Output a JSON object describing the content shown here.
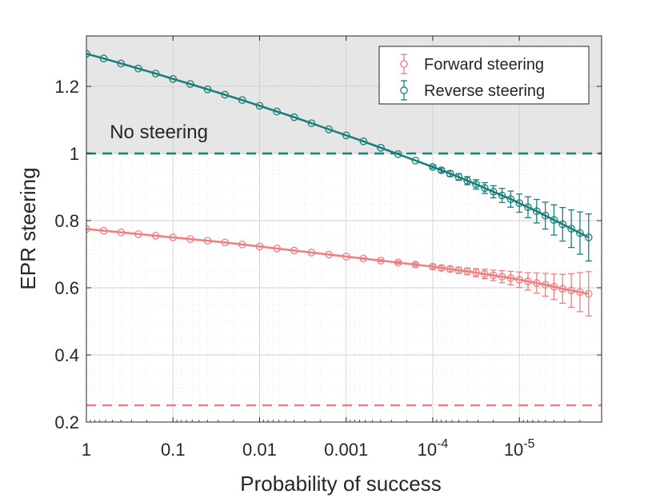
{
  "chart_data": {
    "type": "line",
    "xlabel": "Probability of success",
    "ylabel": "EPR steering",
    "x_scale": "log-reversed",
    "xlim_log10": [
      0,
      -5.95
    ],
    "ylim": [
      0.2,
      1.35
    ],
    "grid": true,
    "legend_position": "top-right",
    "x_ticks": [
      {
        "log10": 0,
        "label": "1"
      },
      {
        "log10": -1,
        "label": "0.1"
      },
      {
        "log10": -2,
        "label": "0.01"
      },
      {
        "log10": -3,
        "label": "0.001"
      },
      {
        "log10": -4,
        "base": "10",
        "exp": "-4"
      },
      {
        "log10": -5,
        "base": "10",
        "exp": "-5"
      }
    ],
    "y_ticks": [
      {
        "value": 0.2,
        "label": "0.2"
      },
      {
        "value": 0.4,
        "label": "0.4"
      },
      {
        "value": 0.6,
        "label": "0.6"
      },
      {
        "value": 0.8,
        "label": "0.8"
      },
      {
        "value": 1.0,
        "label": "1"
      },
      {
        "value": 1.2,
        "label": "1.2"
      }
    ],
    "shaded_region": {
      "from": 1.0,
      "to": 1.35,
      "label": "No steering",
      "color": "#e6e6e6"
    },
    "thresholds": [
      {
        "series": "Reverse steering",
        "value": 1.0
      },
      {
        "series": "Forward steering",
        "value": 0.25
      }
    ],
    "series": [
      {
        "name": "Forward steering",
        "color": "#f08080",
        "log10_x": [
          0,
          -0.2,
          -0.4,
          -0.6,
          -0.8,
          -1.0,
          -1.2,
          -1.4,
          -1.6,
          -1.8,
          -2.0,
          -2.2,
          -2.4,
          -2.6,
          -2.8,
          -3.0,
          -3.2,
          -3.4,
          -3.6,
          -3.8,
          -4.0,
          -4.1,
          -4.2,
          -4.3,
          -4.4,
          -4.5,
          -4.6,
          -4.7,
          -4.8,
          -4.9,
          -5.0,
          -5.1,
          -5.2,
          -5.3,
          -5.4,
          -5.5,
          -5.6,
          -5.7,
          -5.8
        ],
        "values": [
          0.775,
          0.77,
          0.765,
          0.76,
          0.755,
          0.75,
          0.745,
          0.74,
          0.735,
          0.729,
          0.723,
          0.717,
          0.711,
          0.705,
          0.699,
          0.693,
          0.687,
          0.681,
          0.675,
          0.669,
          0.663,
          0.659,
          0.656,
          0.652,
          0.649,
          0.645,
          0.641,
          0.637,
          0.633,
          0.629,
          0.624,
          0.619,
          0.614,
          0.609,
          0.603,
          0.597,
          0.592,
          0.587,
          0.582
        ],
        "errors": [
          0,
          0,
          0,
          0,
          0,
          0,
          0,
          0,
          0,
          0,
          0,
          0,
          0,
          0,
          0,
          0,
          0.002,
          0.003,
          0.004,
          0.005,
          0.006,
          0.007,
          0.008,
          0.009,
          0.01,
          0.012,
          0.014,
          0.016,
          0.018,
          0.02,
          0.023,
          0.026,
          0.03,
          0.034,
          0.038,
          0.043,
          0.05,
          0.058,
          0.066
        ]
      },
      {
        "name": "Reverse steering",
        "color": "#1a7f7a",
        "log10_x": [
          0,
          -0.2,
          -0.4,
          -0.6,
          -0.8,
          -1.0,
          -1.2,
          -1.4,
          -1.6,
          -1.8,
          -2.0,
          -2.2,
          -2.4,
          -2.6,
          -2.8,
          -3.0,
          -3.2,
          -3.4,
          -3.6,
          -3.8,
          -4.0,
          -4.1,
          -4.2,
          -4.3,
          -4.4,
          -4.5,
          -4.6,
          -4.7,
          -4.8,
          -4.9,
          -5.0,
          -5.1,
          -5.2,
          -5.3,
          -5.4,
          -5.5,
          -5.6,
          -5.7,
          -5.8
        ],
        "values": [
          1.297,
          1.283,
          1.268,
          1.253,
          1.238,
          1.222,
          1.207,
          1.191,
          1.175,
          1.159,
          1.142,
          1.125,
          1.108,
          1.09,
          1.072,
          1.054,
          1.036,
          1.017,
          0.998,
          0.979,
          0.96,
          0.95,
          0.94,
          0.93,
          0.919,
          0.908,
          0.897,
          0.886,
          0.875,
          0.864,
          0.852,
          0.84,
          0.828,
          0.815,
          0.802,
          0.789,
          0.776,
          0.763,
          0.75
        ],
        "errors": [
          0,
          0,
          0,
          0,
          0,
          0,
          0,
          0,
          0,
          0,
          0,
          0,
          0,
          0,
          0,
          0,
          0,
          0,
          0,
          0,
          0.004,
          0.006,
          0.008,
          0.01,
          0.012,
          0.014,
          0.016,
          0.018,
          0.021,
          0.024,
          0.027,
          0.031,
          0.035,
          0.04,
          0.045,
          0.05,
          0.056,
          0.063,
          0.07
        ]
      }
    ]
  }
}
